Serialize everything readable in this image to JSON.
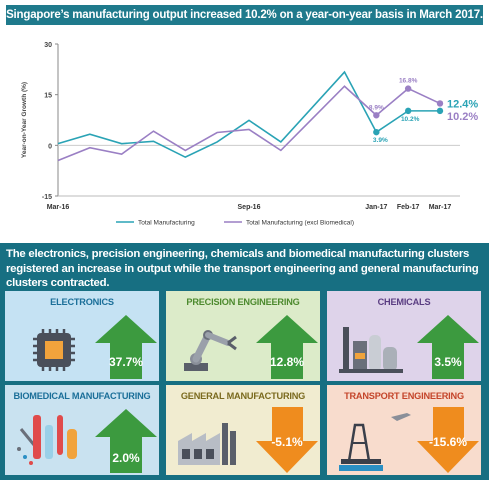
{
  "title": "Singapore’s manufacturing output increased 10.2% on a year-on-year basis in March 2017.",
  "chart_data": {
    "type": "line",
    "ylabel": "Year-on-Year Growth (%)",
    "yticks": [
      "30",
      "15",
      "0",
      "-15"
    ],
    "ylim": [
      -15,
      30
    ],
    "xticks": [
      "Mar-16",
      "Sep-16",
      "Jan-17",
      "Feb-17",
      "Mar-17"
    ],
    "xtick_index": [
      0,
      6,
      10,
      11,
      12
    ],
    "series": [
      {
        "name": "Total Manufacturing",
        "color": "#2aa3b5",
        "values": [
          0.5,
          3.3,
          0.5,
          1.2,
          -3.5,
          1.0,
          7.4,
          1.0,
          21.7,
          3.9,
          10.2,
          10.2
        ]
      },
      {
        "name": "Total Manufacturing (excl Biomedical)",
        "color": "#9a7fc4",
        "values": [
          -4.5,
          -0.7,
          -2.6,
          4.2,
          -1.5,
          3.8,
          4.7,
          -1.5,
          17.5,
          8.9,
          16.8,
          12.4
        ]
      }
    ],
    "x": [
      0,
      1,
      2,
      3,
      4,
      5,
      6,
      7,
      9,
      10,
      11,
      12
    ],
    "point_labels": [
      {
        "text": "8.9%",
        "series": 1,
        "index": 9
      },
      {
        "text": "16.8%",
        "series": 1,
        "index": 10
      },
      {
        "text": "3.9%",
        "series": 0,
        "index": 9
      },
      {
        "text": "10.2%",
        "series": 0,
        "index": 10
      }
    ],
    "end_labels": [
      "12.4%",
      "10.2%"
    ]
  },
  "subheading": "The electronics, precision engineering, chemicals and biomedical manufacturing clusters registered an increase in output while the transport engineering and general manufacturing clusters contracted.",
  "clusters": [
    {
      "name": "ELECTRONICS",
      "value": "37.7%",
      "direction": "up",
      "bg": "#c5e2f3",
      "title_color": "#1b6f99",
      "icon": "microchip-icon"
    },
    {
      "name": "PRECISION ENGINEERING",
      "value": "12.8%",
      "direction": "up",
      "bg": "#dcebc9",
      "title_color": "#4d8a2e",
      "icon": "robotic-arm-icon"
    },
    {
      "name": "CHEMICALS",
      "value": "3.5%",
      "direction": "up",
      "bg": "#ded3ea",
      "title_color": "#5a3d82",
      "icon": "refinery-icon"
    },
    {
      "name": "BIOMEDICAL MANUFACTURING",
      "value": "2.0%",
      "direction": "up",
      "bg": "#c9e2f0",
      "title_color": "#1b6f99",
      "icon": "lab-tools-icon"
    },
    {
      "name": "GENERAL MANUFACTURING",
      "value": "-5.1%",
      "direction": "down",
      "bg": "#f1ecd0",
      "title_color": "#7a6a1e",
      "icon": "factory-icon"
    },
    {
      "name": "TRANSPORT ENGINEERING",
      "value": "-15.6%",
      "direction": "down",
      "bg": "#f8dccd",
      "title_color": "#c4452a",
      "icon": "oil-rig-plane-icon"
    }
  ]
}
